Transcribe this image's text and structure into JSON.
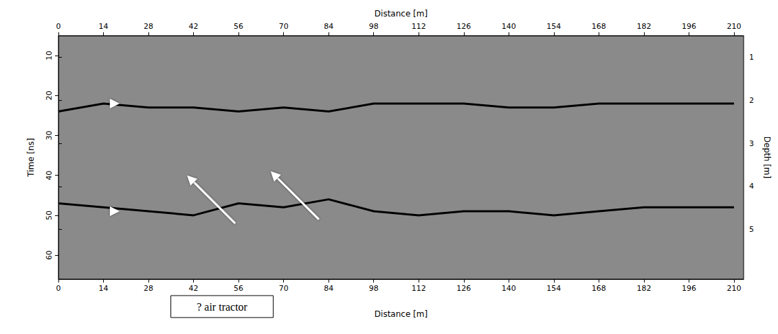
{
  "chart_data": {
    "type": "line",
    "xlabel": "Distance [m]",
    "ylabel": "Time [ns]",
    "y2label": "Depth [m]",
    "x": [
      0,
      14,
      28,
      42,
      56,
      70,
      84,
      98,
      112,
      126,
      140,
      154,
      168,
      182,
      196,
      210
    ],
    "series": [
      {
        "values": [
          24,
          22,
          23,
          23,
          24,
          23,
          24,
          22,
          22,
          22,
          23,
          23,
          22,
          22,
          22,
          22
        ],
        "color": "#000000"
      },
      {
        "values": [
          47,
          48,
          49,
          50,
          47,
          48,
          46,
          49,
          50,
          49,
          49,
          50,
          49,
          48,
          48,
          48
        ],
        "color": "#000000"
      }
    ],
    "xlim": [
      0,
      213
    ],
    "xticks": [
      0,
      14,
      28,
      42,
      56,
      70,
      84,
      98,
      112,
      126,
      140,
      154,
      168,
      182,
      196,
      210
    ],
    "ylim": [
      5,
      66
    ],
    "yticks": [
      10,
      20,
      30,
      40,
      50,
      60
    ],
    "y2lim": [
      0.5,
      6.15
    ],
    "y2ticks": [
      1,
      2,
      3,
      4,
      5
    ],
    "grid": false,
    "arrows": [
      {
        "x": 19,
        "y": 22
      },
      {
        "x": 19,
        "y": 49
      }
    ],
    "annotations": [
      {
        "text": "? air tractor",
        "targets": [
          {
            "x": 40,
            "y": 40
          },
          {
            "x": 66,
            "y": 39
          }
        ]
      }
    ]
  }
}
